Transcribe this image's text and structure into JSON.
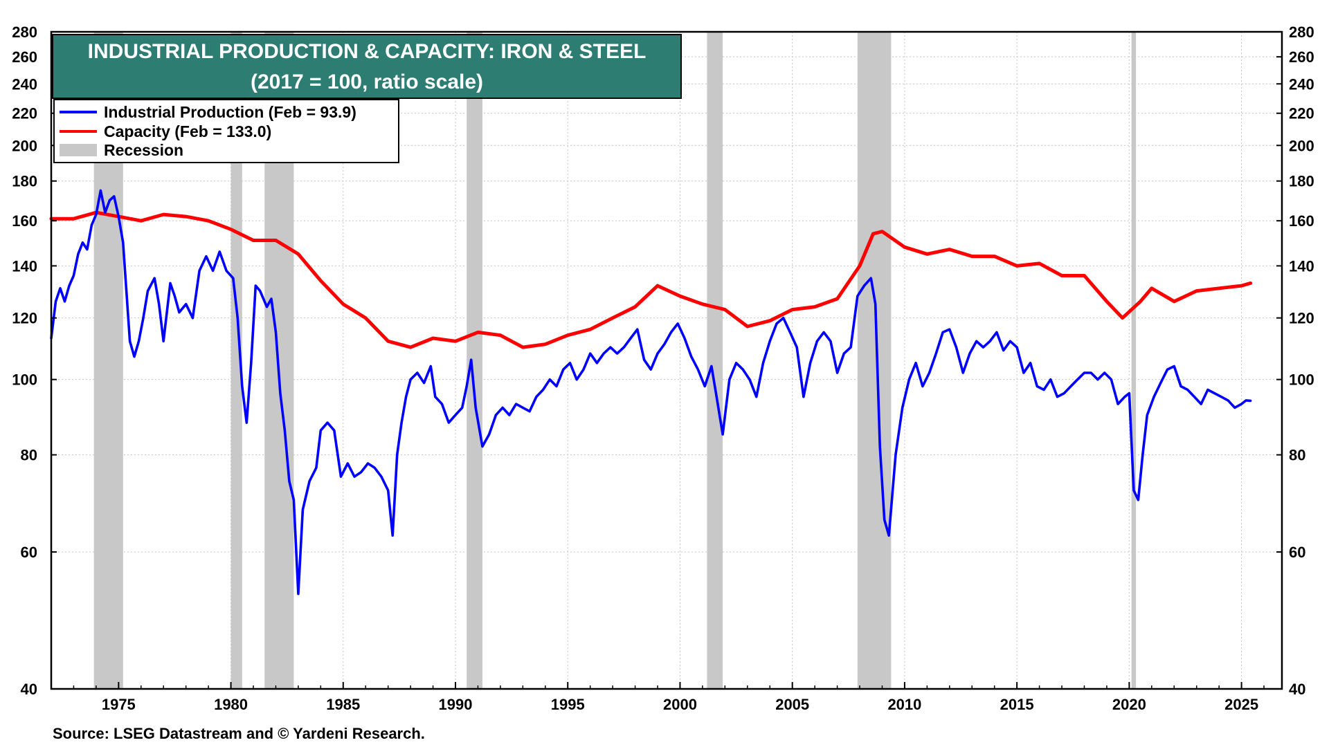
{
  "chart_data": {
    "type": "line",
    "title": "INDUSTRIAL PRODUCTION & CAPACITY: IRON & STEEL",
    "subtitle": "(2017 = 100, ratio scale)",
    "source": "Source: LSEG Datastream and © Yardeni Research.",
    "y_scale": "log",
    "ylim": [
      40,
      280
    ],
    "xlim": [
      1972.0,
      2026.8
    ],
    "y_ticks": [
      40,
      60,
      80,
      100,
      120,
      140,
      160,
      180,
      200,
      220,
      240,
      260,
      280
    ],
    "x_ticks": [
      1975,
      1980,
      1985,
      1990,
      1995,
      2000,
      2005,
      2010,
      2015,
      2020,
      2025
    ],
    "grid": true,
    "legend_position": "top-left",
    "legend": [
      {
        "label": "Industrial Production (Feb = 93.9)",
        "color": "#0000ff",
        "kind": "line"
      },
      {
        "label": "Capacity (Feb = 133.0)",
        "color": "#ff0000",
        "kind": "line"
      },
      {
        "label": "Recession",
        "color": "#c8c8c8",
        "kind": "band"
      }
    ],
    "recessions": [
      [
        1973.9,
        1975.2
      ],
      [
        1980.0,
        1980.5
      ],
      [
        1981.5,
        1982.8
      ],
      [
        1990.5,
        1991.2
      ],
      [
        2001.2,
        2001.9
      ],
      [
        2007.9,
        2009.4
      ],
      [
        2020.1,
        2020.3
      ]
    ],
    "series": [
      {
        "name": "Industrial Production",
        "color": "#0000ff",
        "points": [
          [
            1972.0,
            113
          ],
          [
            1972.2,
            126
          ],
          [
            1972.4,
            131
          ],
          [
            1972.6,
            126
          ],
          [
            1972.8,
            132
          ],
          [
            1973.0,
            136
          ],
          [
            1973.2,
            145
          ],
          [
            1973.4,
            150
          ],
          [
            1973.6,
            147
          ],
          [
            1973.8,
            158
          ],
          [
            1974.0,
            163
          ],
          [
            1974.2,
            175
          ],
          [
            1974.4,
            164
          ],
          [
            1974.6,
            170
          ],
          [
            1974.8,
            172
          ],
          [
            1975.0,
            162
          ],
          [
            1975.2,
            150
          ],
          [
            1975.5,
            112
          ],
          [
            1975.7,
            107
          ],
          [
            1975.9,
            112
          ],
          [
            1976.1,
            120
          ],
          [
            1976.3,
            130
          ],
          [
            1976.6,
            135
          ],
          [
            1976.8,
            125
          ],
          [
            1977.0,
            112
          ],
          [
            1977.3,
            133
          ],
          [
            1977.5,
            128
          ],
          [
            1977.7,
            122
          ],
          [
            1978.0,
            125
          ],
          [
            1978.3,
            120
          ],
          [
            1978.6,
            138
          ],
          [
            1978.9,
            144
          ],
          [
            1979.2,
            138
          ],
          [
            1979.5,
            146
          ],
          [
            1979.8,
            138
          ],
          [
            1980.1,
            135
          ],
          [
            1980.3,
            120
          ],
          [
            1980.5,
            98
          ],
          [
            1980.7,
            88
          ],
          [
            1980.9,
            105
          ],
          [
            1981.1,
            132
          ],
          [
            1981.3,
            130
          ],
          [
            1981.6,
            124
          ],
          [
            1981.8,
            127
          ],
          [
            1982.0,
            115
          ],
          [
            1982.2,
            96
          ],
          [
            1982.4,
            86
          ],
          [
            1982.6,
            74
          ],
          [
            1982.8,
            70
          ],
          [
            1983.0,
            53
          ],
          [
            1983.2,
            68
          ],
          [
            1983.5,
            74
          ],
          [
            1983.8,
            77
          ],
          [
            1984.0,
            86
          ],
          [
            1984.3,
            88
          ],
          [
            1984.6,
            86
          ],
          [
            1984.9,
            75
          ],
          [
            1985.2,
            78
          ],
          [
            1985.5,
            75
          ],
          [
            1985.8,
            76
          ],
          [
            1986.1,
            78
          ],
          [
            1986.4,
            77
          ],
          [
            1986.7,
            75
          ],
          [
            1987.0,
            72
          ],
          [
            1987.2,
            63
          ],
          [
            1987.4,
            80
          ],
          [
            1987.6,
            88
          ],
          [
            1987.8,
            95
          ],
          [
            1988.0,
            100
          ],
          [
            1988.3,
            102
          ],
          [
            1988.6,
            99
          ],
          [
            1988.9,
            104
          ],
          [
            1989.1,
            95
          ],
          [
            1989.4,
            93
          ],
          [
            1989.7,
            88
          ],
          [
            1990.0,
            90
          ],
          [
            1990.3,
            92
          ],
          [
            1990.5,
            98
          ],
          [
            1990.7,
            106
          ],
          [
            1990.9,
            92
          ],
          [
            1991.2,
            82
          ],
          [
            1991.5,
            85
          ],
          [
            1991.8,
            90
          ],
          [
            1992.1,
            92
          ],
          [
            1992.4,
            90
          ],
          [
            1992.7,
            93
          ],
          [
            1993.0,
            92
          ],
          [
            1993.3,
            91
          ],
          [
            1993.6,
            95
          ],
          [
            1993.9,
            97
          ],
          [
            1994.2,
            100
          ],
          [
            1994.5,
            98
          ],
          [
            1994.8,
            103
          ],
          [
            1995.1,
            105
          ],
          [
            1995.4,
            100
          ],
          [
            1995.7,
            103
          ],
          [
            1996.0,
            108
          ],
          [
            1996.3,
            105
          ],
          [
            1996.6,
            108
          ],
          [
            1996.9,
            110
          ],
          [
            1997.2,
            108
          ],
          [
            1997.5,
            110
          ],
          [
            1997.8,
            113
          ],
          [
            1998.1,
            116
          ],
          [
            1998.4,
            106
          ],
          [
            1998.7,
            103
          ],
          [
            1999.0,
            108
          ],
          [
            1999.3,
            111
          ],
          [
            1999.6,
            115
          ],
          [
            1999.9,
            118
          ],
          [
            2000.2,
            113
          ],
          [
            2000.5,
            107
          ],
          [
            2000.8,
            103
          ],
          [
            2001.1,
            98
          ],
          [
            2001.4,
            104
          ],
          [
            2001.6,
            96
          ],
          [
            2001.9,
            85
          ],
          [
            2002.2,
            100
          ],
          [
            2002.5,
            105
          ],
          [
            2002.8,
            103
          ],
          [
            2003.1,
            100
          ],
          [
            2003.4,
            95
          ],
          [
            2003.7,
            105
          ],
          [
            2004.0,
            112
          ],
          [
            2004.3,
            118
          ],
          [
            2004.6,
            120
          ],
          [
            2004.9,
            115
          ],
          [
            2005.2,
            110
          ],
          [
            2005.5,
            95
          ],
          [
            2005.8,
            105
          ],
          [
            2006.1,
            112
          ],
          [
            2006.4,
            115
          ],
          [
            2006.7,
            112
          ],
          [
            2007.0,
            102
          ],
          [
            2007.3,
            108
          ],
          [
            2007.6,
            110
          ],
          [
            2007.9,
            128
          ],
          [
            2008.2,
            132
          ],
          [
            2008.5,
            135
          ],
          [
            2008.7,
            125
          ],
          [
            2008.9,
            82
          ],
          [
            2009.1,
            66
          ],
          [
            2009.3,
            63
          ],
          [
            2009.6,
            80
          ],
          [
            2009.9,
            92
          ],
          [
            2010.2,
            100
          ],
          [
            2010.5,
            105
          ],
          [
            2010.8,
            98
          ],
          [
            2011.1,
            102
          ],
          [
            2011.4,
            108
          ],
          [
            2011.7,
            115
          ],
          [
            2012.0,
            116
          ],
          [
            2012.3,
            110
          ],
          [
            2012.6,
            102
          ],
          [
            2012.9,
            108
          ],
          [
            2013.2,
            112
          ],
          [
            2013.5,
            110
          ],
          [
            2013.8,
            112
          ],
          [
            2014.1,
            115
          ],
          [
            2014.4,
            109
          ],
          [
            2014.7,
            112
          ],
          [
            2015.0,
            110
          ],
          [
            2015.3,
            102
          ],
          [
            2015.6,
            105
          ],
          [
            2015.9,
            98
          ],
          [
            2016.2,
            97
          ],
          [
            2016.5,
            100
          ],
          [
            2016.8,
            95
          ],
          [
            2017.1,
            96
          ],
          [
            2017.4,
            98
          ],
          [
            2017.7,
            100
          ],
          [
            2018.0,
            102
          ],
          [
            2018.3,
            102
          ],
          [
            2018.6,
            100
          ],
          [
            2018.9,
            102
          ],
          [
            2019.2,
            100
          ],
          [
            2019.5,
            93
          ],
          [
            2019.8,
            95
          ],
          [
            2020.0,
            96
          ],
          [
            2020.2,
            72
          ],
          [
            2020.4,
            70
          ],
          [
            2020.6,
            80
          ],
          [
            2020.8,
            90
          ],
          [
            2021.1,
            95
          ],
          [
            2021.4,
            99
          ],
          [
            2021.7,
            103
          ],
          [
            2022.0,
            104
          ],
          [
            2022.3,
            98
          ],
          [
            2022.6,
            97
          ],
          [
            2022.9,
            95
          ],
          [
            2023.2,
            93
          ],
          [
            2023.5,
            97
          ],
          [
            2023.8,
            96
          ],
          [
            2024.1,
            95
          ],
          [
            2024.4,
            94
          ],
          [
            2024.7,
            92
          ],
          [
            2025.0,
            93
          ],
          [
            2025.2,
            94
          ],
          [
            2025.4,
            93.9
          ]
        ]
      },
      {
        "name": "Capacity",
        "color": "#ff0000",
        "points": [
          [
            1972.0,
            161
          ],
          [
            1973.0,
            161
          ],
          [
            1974.0,
            164
          ],
          [
            1975.0,
            162
          ],
          [
            1976.0,
            160
          ],
          [
            1977.0,
            163
          ],
          [
            1978.0,
            162
          ],
          [
            1979.0,
            160
          ],
          [
            1980.0,
            156
          ],
          [
            1981.0,
            151
          ],
          [
            1982.0,
            151
          ],
          [
            1983.0,
            145
          ],
          [
            1984.0,
            134
          ],
          [
            1985.0,
            125
          ],
          [
            1986.0,
            120
          ],
          [
            1987.0,
            112
          ],
          [
            1988.0,
            110
          ],
          [
            1989.0,
            113
          ],
          [
            1990.0,
            112
          ],
          [
            1991.0,
            115
          ],
          [
            1992.0,
            114
          ],
          [
            1993.0,
            110
          ],
          [
            1994.0,
            111
          ],
          [
            1995.0,
            114
          ],
          [
            1996.0,
            116
          ],
          [
            1997.0,
            120
          ],
          [
            1998.0,
            124
          ],
          [
            1999.0,
            132
          ],
          [
            2000.0,
            128
          ],
          [
            2001.0,
            125
          ],
          [
            2002.0,
            123
          ],
          [
            2003.0,
            117
          ],
          [
            2004.0,
            119
          ],
          [
            2005.0,
            123
          ],
          [
            2006.0,
            124
          ],
          [
            2007.0,
            127
          ],
          [
            2008.0,
            140
          ],
          [
            2008.6,
            154
          ],
          [
            2009.0,
            155
          ],
          [
            2010.0,
            148
          ],
          [
            2011.0,
            145
          ],
          [
            2012.0,
            147
          ],
          [
            2013.0,
            144
          ],
          [
            2014.0,
            144
          ],
          [
            2015.0,
            140
          ],
          [
            2016.0,
            141
          ],
          [
            2017.0,
            136
          ],
          [
            2018.0,
            136
          ],
          [
            2019.0,
            126
          ],
          [
            2019.7,
            120
          ],
          [
            2020.5,
            126
          ],
          [
            2021.0,
            131
          ],
          [
            2022.0,
            126
          ],
          [
            2023.0,
            130
          ],
          [
            2024.0,
            131
          ],
          [
            2025.0,
            132
          ],
          [
            2025.4,
            133
          ]
        ]
      }
    ]
  }
}
